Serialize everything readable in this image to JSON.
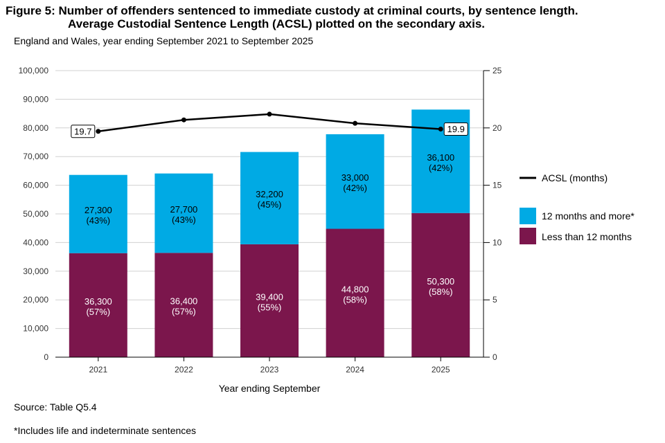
{
  "title_line1": "Figure 5: Number of offenders sentenced to immediate custody at criminal courts, by sentence length.",
  "title_line2": "Average Custodial Sentence Length (ACSL) plotted on the secondary axis.",
  "subtitle": "England and Wales, year ending September 2021 to September 2025",
  "source": "Source: Table Q5.4",
  "footnote": "*Includes life and indeterminate sentences",
  "colors": {
    "less_than_12": "#7b164c",
    "twelve_plus": "#00aae4",
    "acsl_line": "#000000"
  },
  "chart_data": {
    "type": "bar",
    "stacked": true,
    "xlabel": "Year ending September",
    "categories": [
      "2021",
      "2022",
      "2023",
      "2024",
      "2025"
    ],
    "series": [
      {
        "name": "Less than 12 months",
        "values": [
          36300,
          36400,
          39400,
          44800,
          50300
        ],
        "labels": [
          "36,300",
          "36,400",
          "39,400",
          "44,800",
          "50,300"
        ],
        "pct": [
          "(57%)",
          "(57%)",
          "(55%)",
          "(58%)",
          "(58%)"
        ]
      },
      {
        "name": "12 months and more*",
        "values": [
          27300,
          27700,
          32200,
          33000,
          36100
        ],
        "labels": [
          "27,300",
          "27,700",
          "32,200",
          "33,000",
          "36,100"
        ],
        "pct": [
          "(43%)",
          "(43%)",
          "(45%)",
          "(42%)",
          "(42%)"
        ]
      }
    ],
    "line_series": {
      "name": "ACSL (months)",
      "axis": "secondary",
      "values": [
        19.7,
        20.7,
        21.2,
        20.4,
        19.9
      ],
      "point_labels": {
        "0": "19.7",
        "4": "19.9"
      }
    },
    "ylim": [
      0,
      100000
    ],
    "yticks": [
      0,
      10000,
      20000,
      30000,
      40000,
      50000,
      60000,
      70000,
      80000,
      90000,
      100000
    ],
    "ytick_labels": [
      "0",
      "10,000",
      "20,000",
      "30,000",
      "40,000",
      "50,000",
      "60,000",
      "70,000",
      "80,000",
      "90,000",
      "100,000"
    ],
    "y2lim": [
      0,
      25
    ],
    "y2ticks": [
      0,
      5,
      10,
      15,
      20,
      25
    ],
    "y2tick_labels": [
      "0",
      "5",
      "10",
      "15",
      "20",
      "25"
    ],
    "grid": true,
    "legend": "right"
  }
}
